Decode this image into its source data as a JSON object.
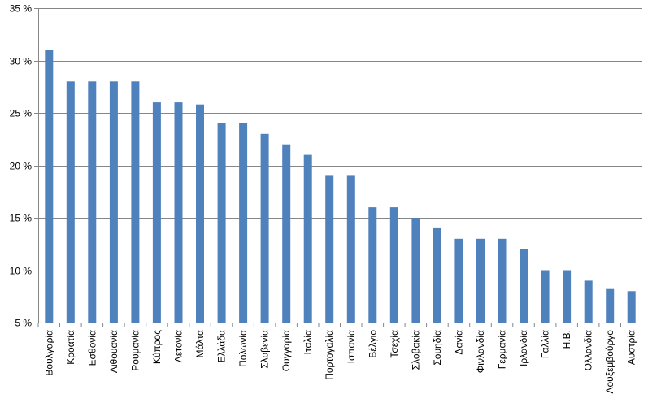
{
  "chart_data": {
    "type": "bar",
    "title": "",
    "xlabel": "",
    "ylabel": "",
    "ylim": [
      5,
      35
    ],
    "yticks": [
      5,
      10,
      15,
      20,
      25,
      30,
      35
    ],
    "ytick_labels": [
      "5 %",
      "10 %",
      "15 %",
      "20 %",
      "25 %",
      "30 %",
      "35 %"
    ],
    "grid": true,
    "legend": "none",
    "bar_color": "#4F81BD",
    "categories": [
      "Βουλγαρία",
      "Κροατία",
      "Εσθονία",
      "Λιθουανία",
      "Ρουμανία",
      "Κύπρος",
      "Λετονία",
      "Μάλτα",
      "Ελλάδα",
      "Πολωνία",
      "Σλοβενία",
      "Ουγγαρία",
      "Ιταλία",
      "Πορτογαλία",
      "Ισπανία",
      "Βέλγιο",
      "Τσεχία",
      "Σλοβακία",
      "Σουηδία",
      "Δανία",
      "Φινλανδία",
      "Γερμανία",
      "Ιρλανδία",
      "Γαλλία",
      "Η.Β.",
      "Ολλανδία",
      "Λουξεμβούργο",
      "Αυστρία"
    ],
    "values": [
      31,
      28,
      28,
      28,
      28,
      26,
      26,
      25.8,
      24,
      24,
      23,
      22,
      21,
      19,
      19,
      16,
      16,
      15,
      14,
      13,
      13,
      13,
      12,
      10,
      10,
      9,
      8.2,
      8
    ]
  }
}
